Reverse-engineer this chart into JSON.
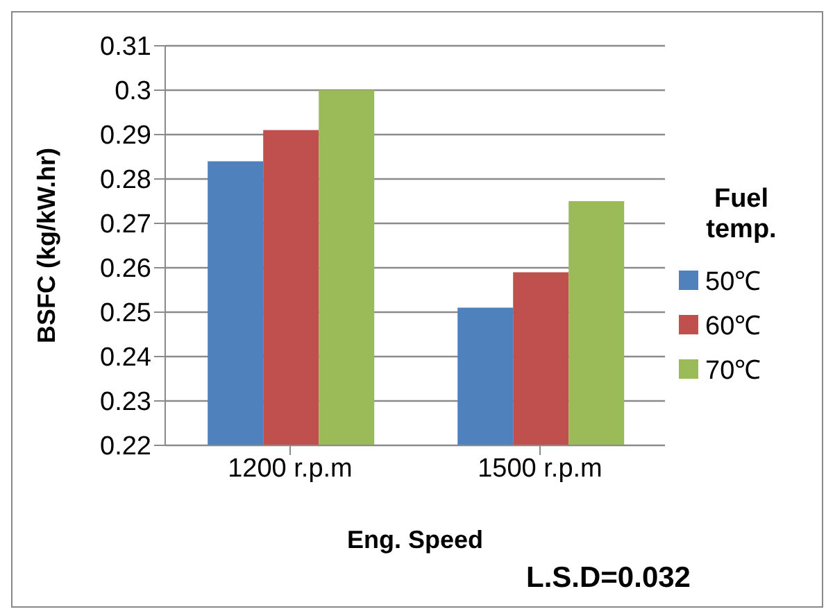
{
  "chart_data": {
    "type": "bar",
    "categories": [
      "1200 r.p.m",
      "1500 r.p.m"
    ],
    "series": [
      {
        "name": "50℃",
        "color": "#4f81bd",
        "values": [
          0.284,
          0.251
        ]
      },
      {
        "name": "60℃",
        "color": "#c0504d",
        "values": [
          0.291,
          0.259
        ]
      },
      {
        "name": "70℃",
        "color": "#9bbb59",
        "values": [
          0.3,
          0.275
        ]
      }
    ],
    "xlabel": "Eng. Speed",
    "ylabel": "BSFC (kg/kW.hr)",
    "legend_title": "Fuel temp.",
    "legend": "right",
    "ylim": [
      0.22,
      0.31
    ],
    "yticks": [
      0.22,
      0.23,
      0.24,
      0.25,
      0.26,
      0.27,
      0.28,
      0.29,
      0.3,
      0.31
    ],
    "grid": "y",
    "annotations": [
      "L.S.D=0.032"
    ]
  }
}
